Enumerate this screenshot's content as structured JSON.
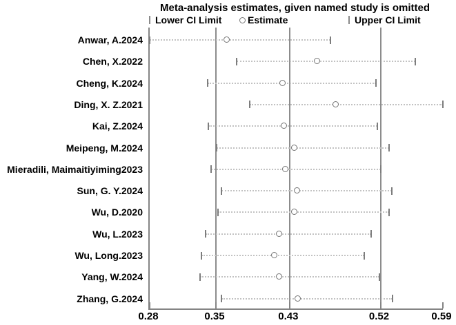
{
  "title": "Meta-analysis estimates, given named study is omitted",
  "legend": {
    "lower_label": "Lower CI Limit",
    "estimate_label": "Estimate",
    "upper_label": "Upper CI Limit"
  },
  "colors": {
    "axis_line": "#848484",
    "reference_line": "#8c8c8c",
    "ci_dotted_line": "#c2c2c2",
    "ci_tick": "#7d7d7d",
    "estimate_marker_stroke": "#757575",
    "text": "#000000",
    "background": "#ffffff"
  },
  "chart_data": {
    "type": "scatter",
    "subtype": "forest-plot-leave-one-out",
    "title": "Meta-analysis estimates, given named study is omitted",
    "xlabel": "",
    "ylabel": "",
    "legend_entries": [
      "Lower CI Limit",
      "Estimate",
      "Upper CI Limit"
    ],
    "x_axis": {
      "min": 0.28,
      "max": 0.59,
      "ticks": [
        {
          "label": "0.28",
          "value": 0.28
        },
        {
          "label": "0.35",
          "value": 0.35
        },
        {
          "label": "0.43",
          "value": 0.428
        },
        {
          "label": "0.52",
          "value": 0.524
        },
        {
          "label": "0.59",
          "value": 0.59
        }
      ]
    },
    "reference_lines": [
      0.35,
      0.428,
      0.524
    ],
    "grid": false,
    "legend_position": "top",
    "studies": [
      {
        "label": "Anwar, A.2024",
        "lower": 0.28,
        "estimate": 0.362,
        "upper": 0.471
      },
      {
        "label": "Chen, X.2022",
        "lower": 0.372,
        "estimate": 0.457,
        "upper": 0.561
      },
      {
        "label": "Cheng, K.2024",
        "lower": 0.341,
        "estimate": 0.421,
        "upper": 0.519
      },
      {
        "label": "Ding, X. Z.2021",
        "lower": 0.386,
        "estimate": 0.477,
        "upper": 0.59
      },
      {
        "label": "Kai, Z.2024",
        "lower": 0.342,
        "estimate": 0.422,
        "upper": 0.521
      },
      {
        "label": "Meipeng, M.2024",
        "lower": 0.351,
        "estimate": 0.433,
        "upper": 0.533
      },
      {
        "label": "Mieradili, Maimaitiyiming2023",
        "lower": 0.345,
        "estimate": 0.424,
        "upper": 0.524
      },
      {
        "label": "Sun, G. Y.2024",
        "lower": 0.356,
        "estimate": 0.436,
        "upper": 0.536
      },
      {
        "label": "Wu, D.2020",
        "lower": 0.352,
        "estimate": 0.433,
        "upper": 0.533
      },
      {
        "label": "Wu, L.2023",
        "lower": 0.339,
        "estimate": 0.417,
        "upper": 0.514
      },
      {
        "label": "Wu, Long.2023",
        "lower": 0.335,
        "estimate": 0.412,
        "upper": 0.507
      },
      {
        "label": "Yang, W.2024",
        "lower": 0.333,
        "estimate": 0.417,
        "upper": 0.523
      },
      {
        "label": "Zhang, G.2024",
        "lower": 0.356,
        "estimate": 0.437,
        "upper": 0.537
      }
    ]
  }
}
